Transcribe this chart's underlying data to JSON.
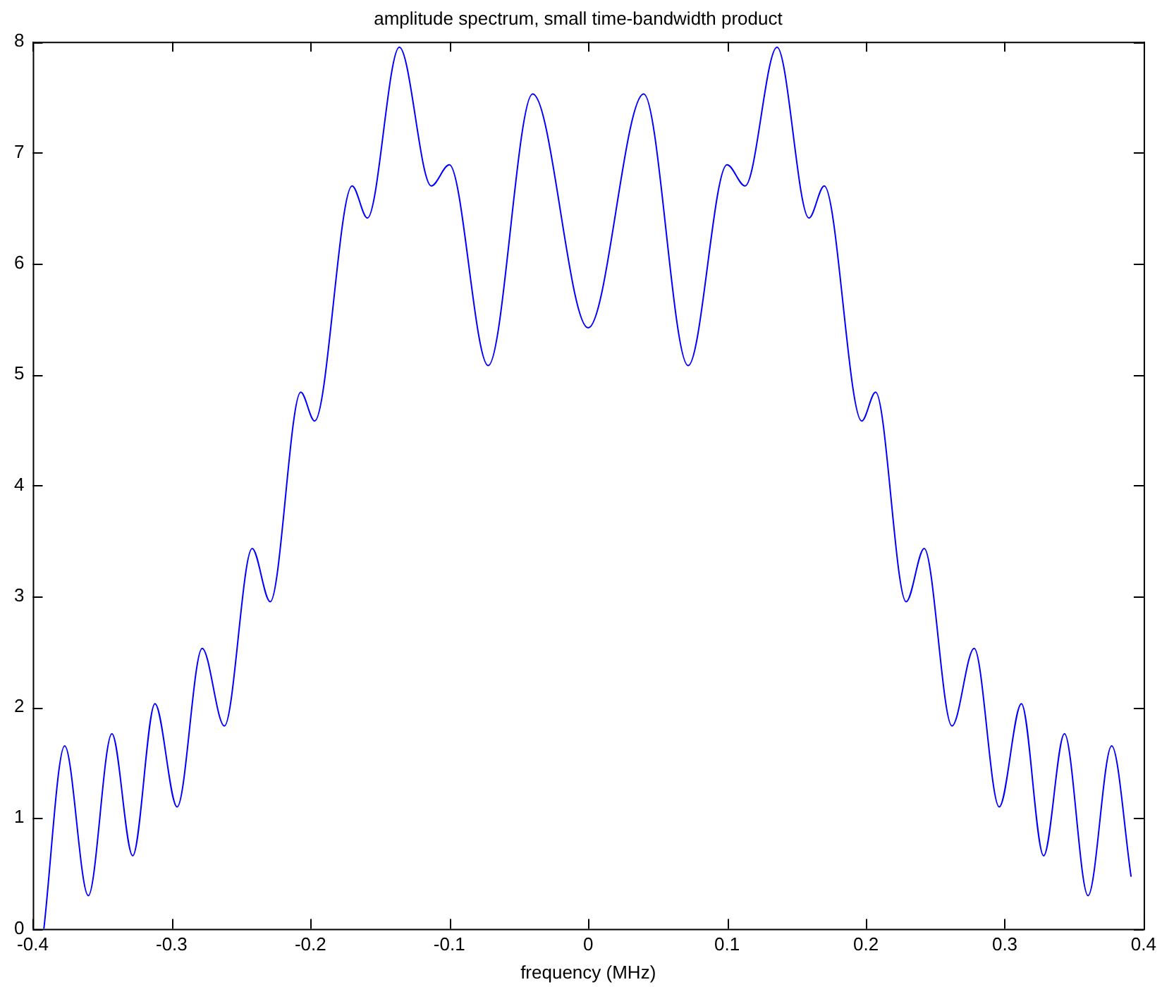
{
  "chart_data": {
    "type": "line",
    "title": "amplitude spectrum, small time-bandwidth product",
    "xlabel": "frequency (MHz)",
    "x": [
      -0.392,
      -0.377,
      -0.36,
      -0.343,
      -0.328,
      -0.312,
      -0.296,
      -0.278,
      -0.262,
      -0.242,
      -0.229,
      -0.207,
      -0.197,
      -0.17,
      -0.159,
      -0.136,
      -0.113,
      -0.1,
      -0.072,
      -0.04,
      0,
      0.04,
      0.072,
      0.1,
      0.113,
      0.136,
      0.159,
      0.17,
      0.197,
      0.207,
      0.229,
      0.242,
      0.262,
      0.278,
      0.296,
      0.312,
      0.328,
      0.343,
      0.36,
      0.377,
      0.391
    ],
    "series": [
      {
        "color": "#0000ff",
        "values": [
          0,
          1.65,
          0.3,
          1.76,
          0.66,
          2.03,
          1.1,
          2.53,
          1.83,
          3.43,
          2.95,
          4.84,
          4.58,
          6.7,
          6.41,
          7.95,
          6.7,
          6.89,
          5.08,
          7.53,
          5.42,
          7.53,
          5.08,
          6.89,
          6.7,
          7.95,
          6.41,
          6.7,
          4.58,
          4.84,
          2.95,
          3.43,
          1.83,
          2.53,
          1.1,
          2.03,
          0.66,
          1.76,
          0.3,
          1.65,
          0.47
        ]
      }
    ],
    "xlim": [
      -0.4,
      0.4
    ],
    "xticks": [
      -0.4,
      -0.3,
      -0.2,
      -0.1,
      0,
      0.1,
      0.2,
      0.3,
      0.4
    ],
    "ylim": [
      0,
      8
    ],
    "yticks": [
      0,
      1,
      2,
      3,
      4,
      5,
      6,
      7,
      8
    ],
    "grid": false,
    "legend": false,
    "marker": "none",
    "line_style": "solid"
  }
}
